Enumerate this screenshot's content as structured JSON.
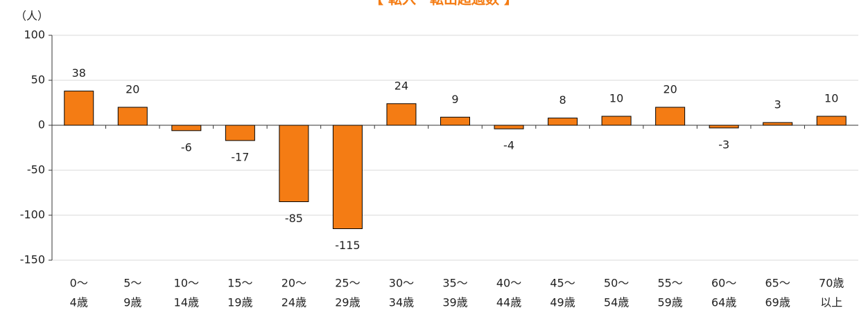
{
  "chart_data": {
    "type": "bar",
    "title": "【 転入－転出超過数 】",
    "y_label": "（人）",
    "categories": [
      [
        "0～",
        "4歳"
      ],
      [
        "5～",
        "9歳"
      ],
      [
        "10～",
        "14歳"
      ],
      [
        "15～",
        "19歳"
      ],
      [
        "20～",
        "24歳"
      ],
      [
        "25～",
        "29歳"
      ],
      [
        "30～",
        "34歳"
      ],
      [
        "35～",
        "39歳"
      ],
      [
        "40～",
        "44歳"
      ],
      [
        "45～",
        "49歳"
      ],
      [
        "50～",
        "54歳"
      ],
      [
        "55～",
        "59歳"
      ],
      [
        "60～",
        "64歳"
      ],
      [
        "65～",
        "69歳"
      ],
      [
        "70歳",
        "以上"
      ]
    ],
    "values": [
      38,
      20,
      -6,
      -17,
      -85,
      -115,
      24,
      9,
      -4,
      8,
      10,
      20,
      -3,
      3,
      10
    ],
    "color": "#f47c14",
    "ylim": [
      -150,
      100
    ],
    "yticks": [
      -150,
      -100,
      -50,
      0,
      50,
      100
    ],
    "grid": true
  }
}
